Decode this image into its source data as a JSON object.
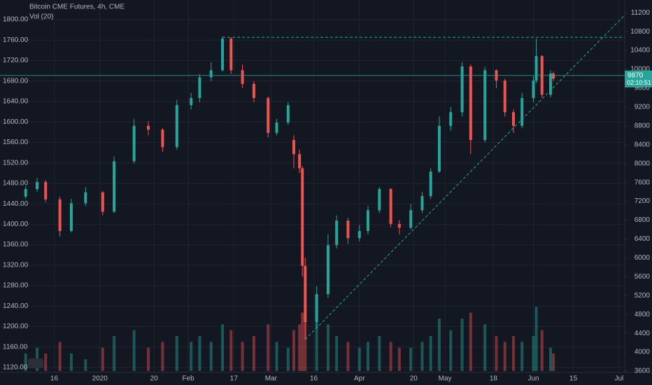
{
  "chart_data": {
    "type": "candlestick",
    "title": "Bitcoin CME Futures, 4h, CME",
    "volume_label": "Vol (20)",
    "xlim": [
      "2019-11-27",
      "2020-07-03"
    ],
    "xticks": [
      {
        "value": "2019-12-16",
        "label": "16"
      },
      {
        "value": "2020-01-01",
        "label": "2020"
      },
      {
        "value": "2020-01-20",
        "label": "20"
      },
      {
        "value": "2020-02-01",
        "label": "Feb"
      },
      {
        "value": "2020-02-17",
        "label": "17"
      },
      {
        "value": "2020-03-01",
        "label": "Mar"
      },
      {
        "value": "2020-03-16",
        "label": "16"
      },
      {
        "value": "2020-04-01",
        "label": "Apr"
      },
      {
        "value": "2020-04-20",
        "label": "20"
      },
      {
        "value": "2020-05-01",
        "label": "May"
      },
      {
        "value": "2020-05-18",
        "label": "18"
      },
      {
        "value": "2020-06-01",
        "label": "Jun"
      },
      {
        "value": "2020-06-15",
        "label": "15"
      },
      {
        "value": "2020-07-01",
        "label": "Jul"
      }
    ],
    "ylim": [
      3600,
      11470
    ],
    "yticks": [
      3600,
      4000,
      4400,
      4800,
      5200,
      5600,
      6000,
      6400,
      6800,
      7200,
      7600,
      8000,
      8400,
      8800,
      9200,
      9600,
      10000,
      10400,
      10800,
      11200
    ],
    "y2lim": [
      1113.2,
      1838.3
    ],
    "y2ticks": [
      {
        "value": 1120,
        "label": "1120.00"
      },
      {
        "value": 1160,
        "label": "1160.00"
      },
      {
        "value": 1200,
        "label": "1200.00"
      },
      {
        "value": 1240,
        "label": "1240.00"
      },
      {
        "value": 1280,
        "label": "1280.00"
      },
      {
        "value": 1320,
        "label": "1320.00"
      },
      {
        "value": 1360,
        "label": "1360.00"
      },
      {
        "value": 1400,
        "label": "1400.00"
      },
      {
        "value": 1440,
        "label": "1440.00"
      },
      {
        "value": 1480,
        "label": "1480.00"
      },
      {
        "value": 1520,
        "label": "1520.00"
      },
      {
        "value": 1560,
        "label": "1560.00"
      },
      {
        "value": 1600,
        "label": "1600.00"
      },
      {
        "value": 1640,
        "label": "1640.00"
      },
      {
        "value": 1680,
        "label": "1680.00"
      },
      {
        "value": 1720,
        "label": "1720.00"
      },
      {
        "value": 1760,
        "label": "1760.00"
      },
      {
        "value": 1800,
        "label": "1800.00"
      }
    ],
    "grid": true,
    "up_color": "#26a69a",
    "down_color": "#ef5350",
    "x": [
      "2019-12-06",
      "2019-12-10",
      "2019-12-13",
      "2019-12-18",
      "2019-12-22",
      "2019-12-27",
      "2020-01-02",
      "2020-01-06",
      "2020-01-13",
      "2020-01-18",
      "2020-01-23",
      "2020-01-28",
      "2020-02-02",
      "2020-02-05",
      "2020-02-09",
      "2020-02-13",
      "2020-02-16",
      "2020-02-20",
      "2020-02-24",
      "2020-02-29",
      "2020-03-03",
      "2020-03-07",
      "2020-03-09",
      "2020-03-11",
      "2020-03-12",
      "2020-03-13",
      "2020-03-17",
      "2020-03-21",
      "2020-03-24",
      "2020-03-28",
      "2020-04-01",
      "2020-04-04",
      "2020-04-08",
      "2020-04-12",
      "2020-04-15",
      "2020-04-19",
      "2020-04-23",
      "2020-04-26",
      "2020-04-29",
      "2020-05-03",
      "2020-05-07",
      "2020-05-10",
      "2020-05-15",
      "2020-05-19",
      "2020-05-22",
      "2020-05-25",
      "2020-05-28",
      "2020-06-01",
      "2020-06-02",
      "2020-06-04",
      "2020-06-07",
      "2020-06-08"
    ],
    "open": [
      7300,
      7460,
      7610,
      7240,
      6570,
      7160,
      7390,
      6980,
      8050,
      8800,
      8720,
      8350,
      9240,
      9390,
      9830,
      9980,
      10650,
      9980,
      9690,
      9390,
      8650,
      8870,
      8500,
      8200,
      7900,
      5830,
      4640,
      5230,
      6270,
      6790,
      6420,
      6570,
      7010,
      7460,
      6720,
      6640,
      7010,
      7310,
      7830,
      8800,
      9090,
      10060,
      8500,
      9980,
      9760,
      9090,
      8800,
      9390,
      9760,
      10280,
      9460,
      9910
    ],
    "high": [
      7520,
      7700,
      7650,
      7300,
      7250,
      7500,
      7420,
      8150,
      8950,
      8900,
      8750,
      9350,
      9500,
      9900,
      10150,
      10700,
      10680,
      10100,
      9750,
      9420,
      8950,
      9300,
      8600,
      8300,
      7950,
      6000,
      5400,
      6500,
      6900,
      6850,
      6700,
      7100,
      7500,
      7480,
      6800,
      7150,
      7400,
      7900,
      9000,
      9200,
      10150,
      10100,
      10050,
      10000,
      9800,
      9150,
      9500,
      9850,
      10650,
      10300,
      9980,
      9950
    ],
    "low": [
      7250,
      7400,
      7180,
      6450,
      6540,
      7100,
      6900,
      6950,
      8000,
      8600,
      8250,
      8300,
      9150,
      9300,
      9750,
      9950,
      9900,
      9600,
      9300,
      8550,
      8600,
      8820,
      7900,
      7800,
      5600,
      4270,
      4500,
      5150,
      6200,
      6300,
      6350,
      6500,
      6950,
      6650,
      6500,
      6600,
      6950,
      7250,
      7800,
      8700,
      9000,
      8200,
      8450,
      9600,
      9000,
      8650,
      8750,
      9300,
      9700,
      9400,
      9400,
      9750
    ],
    "close": [
      7460,
      7610,
      7240,
      6570,
      7160,
      7390,
      6980,
      8050,
      8800,
      8720,
      8350,
      9240,
      9390,
      9830,
      9980,
      10650,
      9980,
      9690,
      9390,
      8650,
      8870,
      9240,
      8200,
      7900,
      5830,
      4640,
      5230,
      6270,
      6790,
      6420,
      6570,
      7010,
      7460,
      6720,
      6640,
      7010,
      7310,
      7830,
      8800,
      9090,
      10060,
      8500,
      9980,
      9760,
      9090,
      8800,
      9390,
      9760,
      10280,
      9460,
      9910,
      9800
    ],
    "volume": [
      3,
      4,
      3,
      5,
      3,
      2,
      4,
      6,
      7,
      4,
      5,
      6,
      5,
      6,
      5,
      8,
      7,
      5,
      6,
      8,
      5,
      4,
      7,
      8,
      10,
      12,
      9,
      8,
      6,
      5,
      4,
      5,
      6,
      5,
      4,
      4,
      5,
      6,
      9,
      7,
      9,
      10,
      8,
      6,
      5,
      6,
      5,
      6,
      11,
      7,
      4,
      3
    ],
    "price_line": {
      "value": 9870,
      "countdown": "02:10:51"
    },
    "resistance": {
      "x": "2020-02-13",
      "value": 10680
    },
    "trendline": [
      {
        "x": "2020-03-13",
        "value": 4270
      },
      {
        "x": "2020-07-03",
        "value": 11150
      }
    ]
  }
}
